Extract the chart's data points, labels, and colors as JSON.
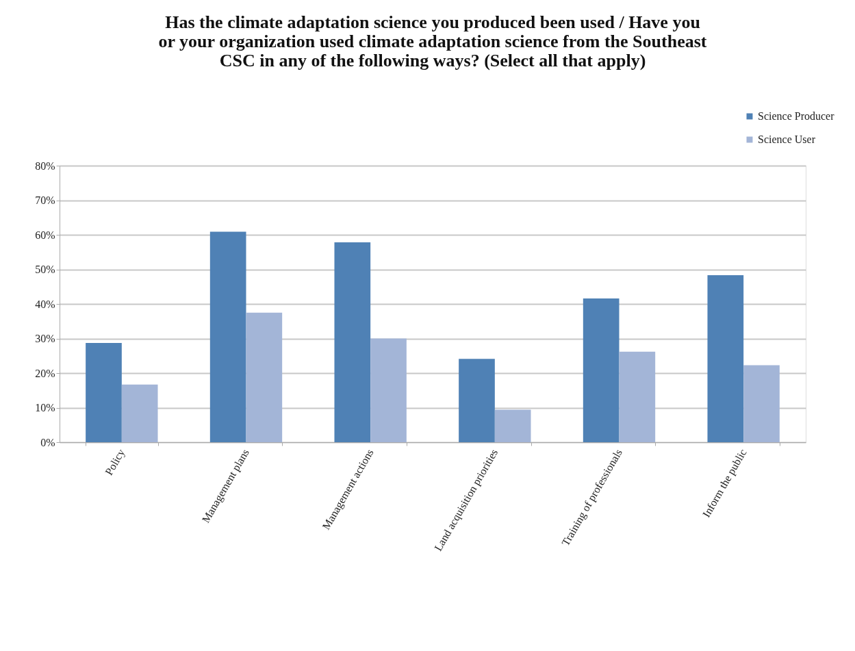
{
  "chart_data": {
    "type": "bar",
    "title": "Has the climate adaptation science you produced been used / Have you\nor your organization used climate adaptation science from the Southeast\nCSC in any of the following ways? (Select all that apply)",
    "categories": [
      "Policy",
      "Management plans",
      "Management actions",
      "Land acquisition priorities",
      "Training of professionals",
      "Inform the public"
    ],
    "series": [
      {
        "name": "Science Producer",
        "color": "#4f81b5",
        "values": [
          28.7,
          60.9,
          57.8,
          24.1,
          41.6,
          48.3
        ]
      },
      {
        "name": "Science User",
        "color": "#a3b5d7",
        "values": [
          16.7,
          37.5,
          30.0,
          9.4,
          26.2,
          22.3
        ]
      }
    ],
    "ylim": [
      0,
      80
    ],
    "yticks": [
      {
        "value": 0,
        "label": "0%"
      },
      {
        "value": 10,
        "label": "10%"
      },
      {
        "value": 20,
        "label": "20%"
      },
      {
        "value": 30,
        "label": "30%"
      },
      {
        "value": 40,
        "label": "40%"
      },
      {
        "value": 50,
        "label": "50%"
      },
      {
        "value": 60,
        "label": "60%"
      },
      {
        "value": 70,
        "label": "70%"
      },
      {
        "value": 80,
        "label": "80%"
      }
    ],
    "grid": "y",
    "legend": "top right"
  }
}
